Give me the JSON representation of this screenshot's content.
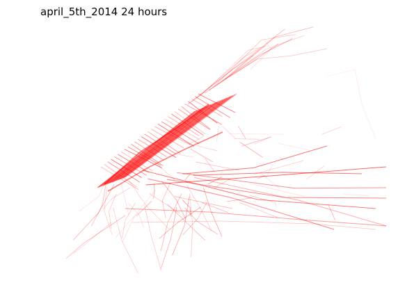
{
  "title": "april_5th_2014 24 hours",
  "chart_data": {
    "type": "line",
    "title": "april_5th_2014 24 hours",
    "axes_visible": false,
    "grid": false,
    "legend": "none",
    "series_color": "#ff0000",
    "description_of_marks": "dense red GPS trip traces; darkest over Manhattan grid, fainter lines spreading east and south"
  }
}
